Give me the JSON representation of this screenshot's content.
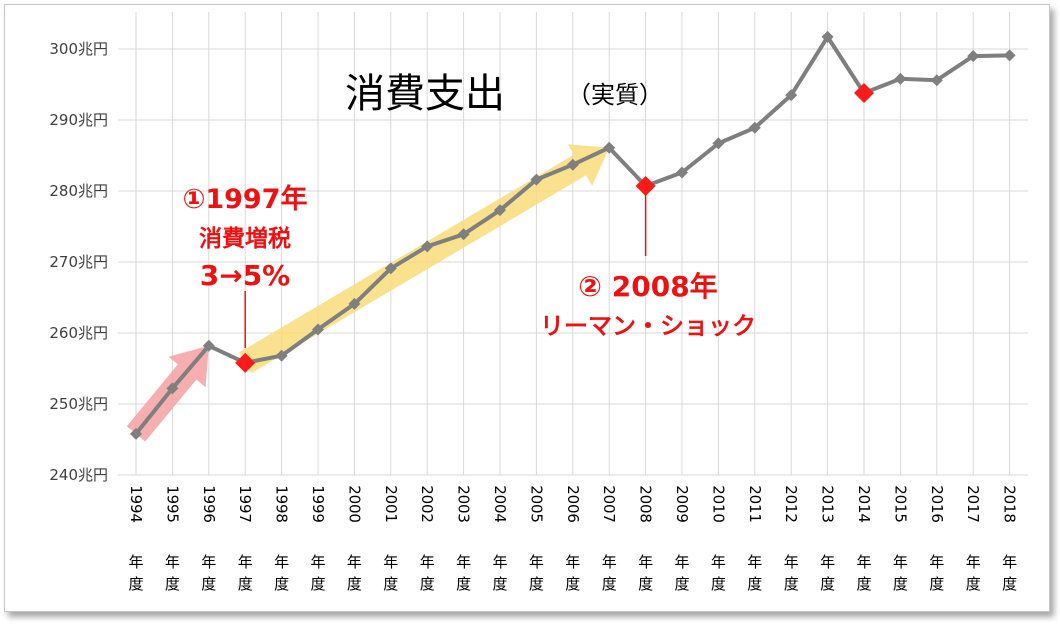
{
  "chart_data": {
    "type": "line",
    "title": "消費支出",
    "subtitle": "（実質）",
    "ylim": [
      240,
      300
    ],
    "yticks": [
      "240兆円",
      "250兆円",
      "260兆円",
      "270兆円",
      "280兆円",
      "290兆円",
      "300兆円"
    ],
    "categories": [
      "1994年度",
      "1995年度",
      "1996年度",
      "1997年度",
      "1998年度",
      "1999年度",
      "2000年度",
      "2001年度",
      "2002年度",
      "2003年度",
      "2004年度",
      "2005年度",
      "2006年度",
      "2007年度",
      "2008年度",
      "2009年度",
      "2010年度",
      "2011年度",
      "2012年度",
      "2013年度",
      "2014年度",
      "2015年度",
      "2016年度",
      "2017年度",
      "2018年度"
    ],
    "values": [
      245.8,
      252.2,
      258.2,
      255.8,
      256.8,
      260.5,
      264.1,
      269.1,
      272.2,
      273.9,
      277.3,
      281.6,
      283.7,
      286.1,
      280.7,
      282.6,
      286.7,
      288.9,
      293.5,
      301.7,
      293.8,
      295.8,
      295.6,
      299.0,
      299.1
    ],
    "highlight_indices": [
      3,
      14,
      20
    ],
    "grid": true,
    "line_color": "#7f7f7f",
    "highlight_color": "#ff1a1a",
    "annotations": [
      {
        "lines": [
          "①1997年",
          "消費増税",
          "3→5%"
        ],
        "target_index": 3
      },
      {
        "lines": [
          "② 2008年",
          "リーマン・ショック"
        ],
        "target_index": 14
      }
    ],
    "trend_arrows": [
      {
        "from_index": 0,
        "to_index": 2,
        "color": "#f5a0a0"
      },
      {
        "from_index": 3,
        "to_index": 13,
        "color": "#f8dc7a"
      }
    ]
  }
}
